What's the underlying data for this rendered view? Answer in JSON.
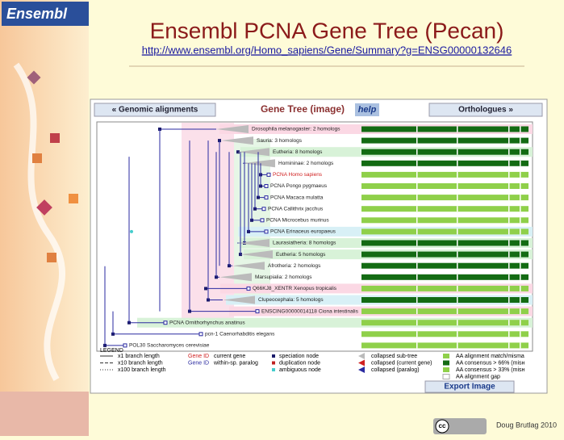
{
  "header": {
    "logo": "Ensembl",
    "title": "Ensembl PCNA Gene Tree (Pecan)",
    "url": "http://www.ensembl.org/Homo_sapiens/Gene/Summary?g=ENSG00000132646"
  },
  "nav": {
    "left": "« Genomic alignments",
    "center": "Gene Tree (image)",
    "help": "help",
    "right": "Orthologues »"
  },
  "tree": {
    "rows": [
      "Drosophila melanogaster: 2 homologs",
      "Sauria: 3 homologs",
      "Eutheria: 8 homologs",
      "Homininae: 2 homologs",
      "PCNA Homo sapiens",
      "PCNA Pongo pygmaeus",
      "PCNA Macaca mulatta",
      "PCNA Callithrix jacchus",
      "PCNA Microcebus murinus",
      "PCNA Erinaceus europaeus",
      "Laurasiatheria: 8 homologs",
      "Eutheria: 5 homologs",
      "Afrotheria: 2 homologs",
      "Marsupialia: 2 homologs",
      "Q66KJ8_XENTR Xenopus tropicalis",
      "Clupeocephala: 5 homologs",
      "ENSCING00000014118 Ciona intestinalis",
      "PCNA Ornithorhynchus anatinus",
      "pcn-1 Caenorhabditis elegans",
      "POL30 Saccharomyces cerevisiae"
    ]
  },
  "legend": {
    "title": "LEGEND",
    "branch": [
      "x1 branch length",
      "x10 branch length",
      "x100 branch length"
    ],
    "gene_id": [
      {
        "id": "Gene ID",
        "text": "current gene"
      },
      {
        "id": "Gene ID",
        "text": "within-sp. paralog"
      }
    ],
    "nodes": [
      "speciation node",
      "duplication node",
      "ambiguous node"
    ],
    "collapsed": [
      "collapsed sub-tree",
      "collapsed (current gene)",
      "collapsed (paralog)"
    ],
    "alignment": [
      "AA alignment match/misma",
      "AA consensus > 66% (misн",
      "AA consensus > 33% (misн",
      "AA alignment gap"
    ]
  },
  "footer": {
    "export": "Export Image",
    "author": "Doug Brutlag 2010",
    "license": "cc"
  }
}
